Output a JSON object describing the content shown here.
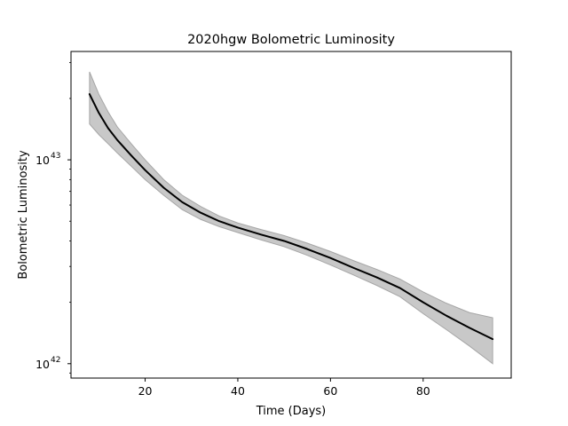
{
  "chart_data": {
    "type": "line",
    "title": "2020hgw Bolometric Luminosity",
    "xlabel": "Time (Days)",
    "ylabel": "Bolometric Luminosity",
    "yscale": "log",
    "xlim": [
      4,
      99
    ],
    "ylim": [
      8.5e+41,
      3.4e+43
    ],
    "x_ticks": [
      20,
      40,
      60,
      80
    ],
    "y_ticks": [
      {
        "value": 1e+42,
        "base": "10",
        "exp": "42"
      },
      {
        "value": 1e+43,
        "base": "10",
        "exp": "43"
      }
    ],
    "grid": false,
    "legend": "none",
    "colors": {
      "line": "#000000",
      "band": "#c8c8c8",
      "band_edge": "#a6a6a6"
    },
    "series": [
      {
        "x": [
          8,
          10,
          12,
          14,
          17,
          20,
          24,
          28,
          32,
          36,
          40,
          45,
          50,
          55,
          60,
          65,
          70,
          75,
          80,
          85,
          90,
          95
        ],
        "y": [
          2.1e+43,
          1.7e+43,
          1.43e+43,
          1.25e+43,
          1.05e+43,
          8.9e+42,
          7.3e+42,
          6.2e+42,
          5.5e+42,
          5e+42,
          4.65e+42,
          4.3e+42,
          4e+42,
          3.65e+42,
          3.3e+42,
          2.95e+42,
          2.65e+42,
          2.35e+42,
          2e+42,
          1.72e+42,
          1.5e+42,
          1.32e+42
        ],
        "upper": [
          2.7e+43,
          2.1e+43,
          1.72e+43,
          1.45e+43,
          1.2e+43,
          1e+43,
          8e+42,
          6.7e+42,
          5.9e+42,
          5.3e+42,
          4.9e+42,
          4.55e+42,
          4.25e+42,
          3.9e+42,
          3.55e+42,
          3.2e+42,
          2.9e+42,
          2.6e+42,
          2.25e+42,
          1.98e+42,
          1.78e+42,
          1.68e+42
        ],
        "lower": [
          1.5e+43,
          1.33e+43,
          1.2e+43,
          1.08e+43,
          9.3e+42,
          8e+42,
          6.7e+42,
          5.7e+42,
          5.1e+42,
          4.7e+42,
          4.4e+42,
          4.05e+42,
          3.75e+42,
          3.4e+42,
          3.05e+42,
          2.72e+42,
          2.42e+42,
          2.13e+42,
          1.76e+42,
          1.47e+42,
          1.22e+42,
          1e+42
        ]
      }
    ]
  }
}
